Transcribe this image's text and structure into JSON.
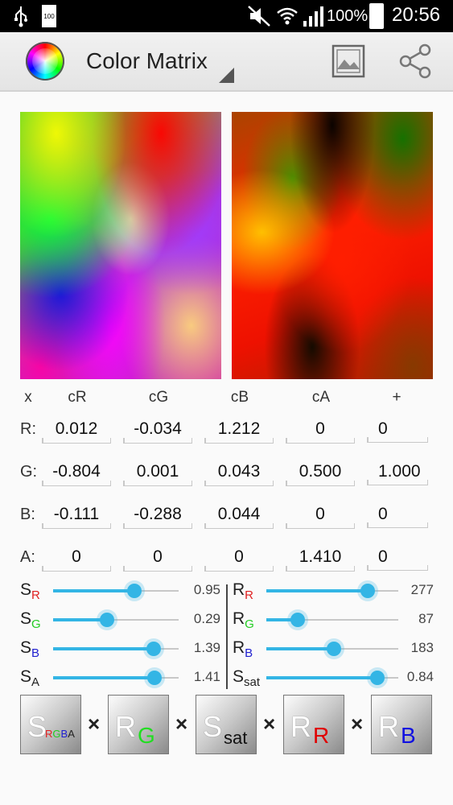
{
  "status": {
    "usb": "usb-icon",
    "battery_small": "100",
    "mute": "mute-icon",
    "wifi": "wifi-icon",
    "signal": "signal-icon",
    "battery_pct": "100%",
    "time": "20:56"
  },
  "app": {
    "title": "Color Matrix",
    "logo": "color-wheel-icon",
    "image_button": "image-icon",
    "share_button": "share-icon"
  },
  "matrix": {
    "corner": "x",
    "columns": [
      "cR",
      "cG",
      "cB",
      "cA",
      "+"
    ],
    "rows": [
      {
        "label": "R:",
        "values": [
          "0.012",
          "-0.034",
          "1.212",
          "0",
          "0"
        ]
      },
      {
        "label": "G:",
        "values": [
          "-0.804",
          "0.001",
          "0.043",
          "0.500",
          "1.000"
        ]
      },
      {
        "label": "B:",
        "values": [
          "-0.111",
          "-0.288",
          "0.044",
          "0",
          "0"
        ]
      },
      {
        "label": "A:",
        "values": [
          "0",
          "0",
          "0",
          "1.410",
          "0"
        ]
      }
    ]
  },
  "sliders_left": [
    {
      "name": "S",
      "sub": "R",
      "sub_color": "#e02020",
      "value": "0.95",
      "level": 0.65
    },
    {
      "name": "S",
      "sub": "G",
      "sub_color": "#22cc22",
      "value": "0.29",
      "level": 0.43
    },
    {
      "name": "S",
      "sub": "B",
      "sub_color": "#2020d0",
      "value": "1.39",
      "level": 0.8
    },
    {
      "name": "S",
      "sub": "A",
      "sub_color": "#222222",
      "value": "1.41",
      "level": 0.81
    }
  ],
  "sliders_right": [
    {
      "name": "R",
      "sub": "R",
      "sub_color": "#e02020",
      "value": "277",
      "level": 0.77
    },
    {
      "name": "R",
      "sub": "G",
      "sub_color": "#22cc22",
      "value": "87",
      "level": 0.24
    },
    {
      "name": "R",
      "sub": "B",
      "sub_color": "#2020d0",
      "value": "183",
      "level": 0.51
    },
    {
      "name": "S",
      "sub": "sat",
      "sub_color": "#222222",
      "value": "0.84",
      "level": 0.84
    }
  ],
  "buttons": [
    {
      "main": "S",
      "sub_letters": [
        {
          "t": "R",
          "c": "#e02020"
        },
        {
          "t": "G",
          "c": "#22cc22"
        },
        {
          "t": "B",
          "c": "#2020d0"
        },
        {
          "t": "A",
          "c": "#222222"
        }
      ]
    },
    {
      "main": "R",
      "sub": "G",
      "sub_color": "#22dd22"
    },
    {
      "main": "S",
      "sub": "sat",
      "sub_color": "#111111"
    },
    {
      "main": "R",
      "sub": "R",
      "sub_color": "#e00000"
    },
    {
      "main": "R",
      "sub": "B",
      "sub_color": "#1010e0"
    }
  ],
  "operator": "×",
  "colors": {
    "accent": "#33b5e5",
    "statusbar": "#000000"
  }
}
